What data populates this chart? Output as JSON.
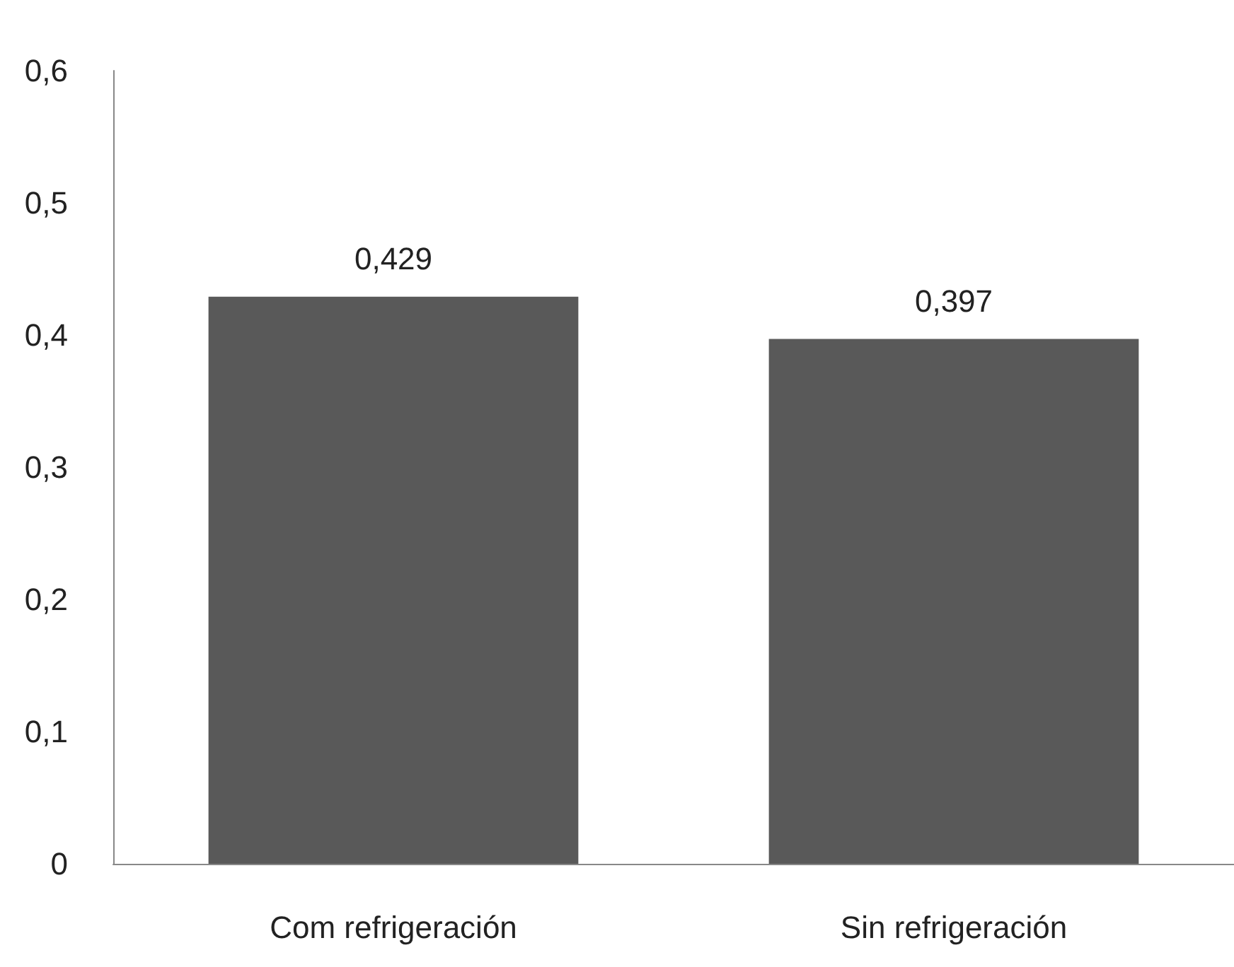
{
  "chart_data": {
    "type": "bar",
    "categories": [
      "Com refrigeración",
      "Sin refrigeración"
    ],
    "values": [
      0.429,
      0.397
    ],
    "color": "#595959",
    "value_labels": [
      "0,429",
      "0,397"
    ],
    "ylim": [
      0,
      0.6
    ],
    "yticks": [
      {
        "value": 0,
        "label": "0"
      },
      {
        "value": 0.1,
        "label": "0,1"
      },
      {
        "value": 0.2,
        "label": "0,2"
      },
      {
        "value": 0.3,
        "label": "0,3"
      },
      {
        "value": 0.4,
        "label": "0,4"
      },
      {
        "value": 0.5,
        "label": "0,5"
      },
      {
        "value": 0.6,
        "label": "0,6"
      }
    ],
    "grid": false
  }
}
